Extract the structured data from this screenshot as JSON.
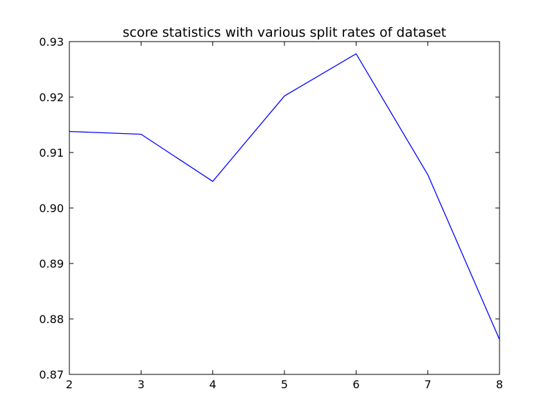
{
  "chart_data": {
    "type": "line",
    "title": "score statistics with various split rates of dataset",
    "xlabel": "",
    "ylabel": "",
    "x": [
      2,
      3,
      4,
      5,
      6,
      7,
      8
    ],
    "xlim": [
      2,
      8
    ],
    "ylim": [
      0.87,
      0.93
    ],
    "x_ticks": [
      2,
      3,
      4,
      5,
      6,
      7,
      8
    ],
    "x_tick_labels": [
      "2",
      "3",
      "4",
      "5",
      "6",
      "7",
      "8"
    ],
    "y_ticks": [
      0.87,
      0.88,
      0.89,
      0.9,
      0.91,
      0.92,
      0.93
    ],
    "y_tick_labels": [
      "0.87",
      "0.88",
      "0.89",
      "0.90",
      "0.91",
      "0.92",
      "0.93"
    ],
    "grid": false,
    "legend": false,
    "series": [
      {
        "color": "#0000ff",
        "values": [
          0.9138,
          0.9133,
          0.9048,
          0.9202,
          0.9278,
          0.906,
          0.8763
        ]
      }
    ]
  }
}
